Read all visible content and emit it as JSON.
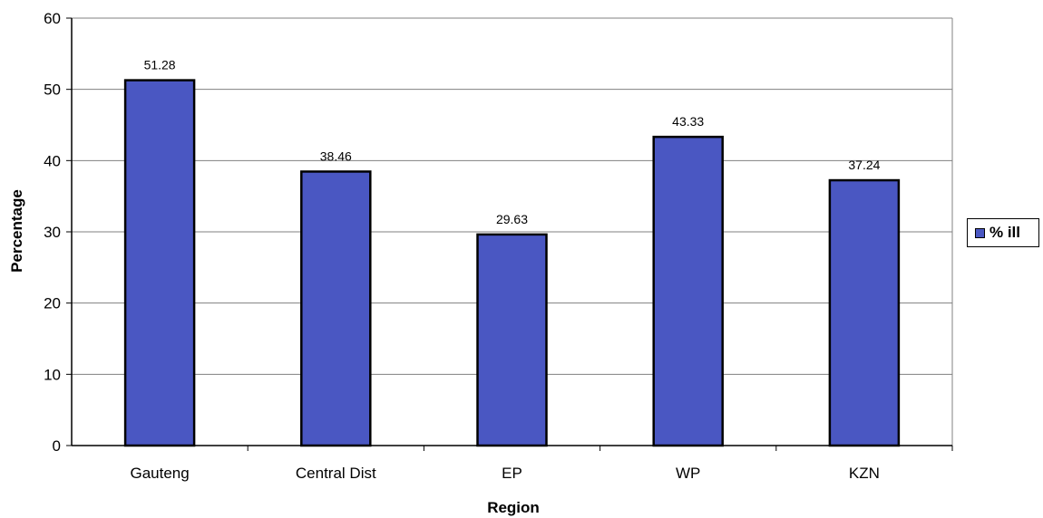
{
  "chart_data": {
    "type": "bar",
    "categories": [
      "Gauteng",
      "Central Dist",
      "EP",
      "WP",
      "KZN"
    ],
    "series": [
      {
        "name": "% ill",
        "values": [
          51.28,
          38.46,
          29.63,
          43.33,
          37.24
        ]
      }
    ],
    "data_labels": [
      "51.28",
      "38.46",
      "29.63",
      "43.33",
      "37.24"
    ],
    "xlabel": "Region",
    "ylabel": "Percentage",
    "ylim": [
      0,
      60
    ],
    "yticks": [
      0,
      10,
      20,
      30,
      40,
      50,
      60
    ],
    "grid": true,
    "legend_position": "right",
    "colors": {
      "bar": "#4a57c2",
      "bar_border": "#000000",
      "grid": "#808080"
    }
  }
}
